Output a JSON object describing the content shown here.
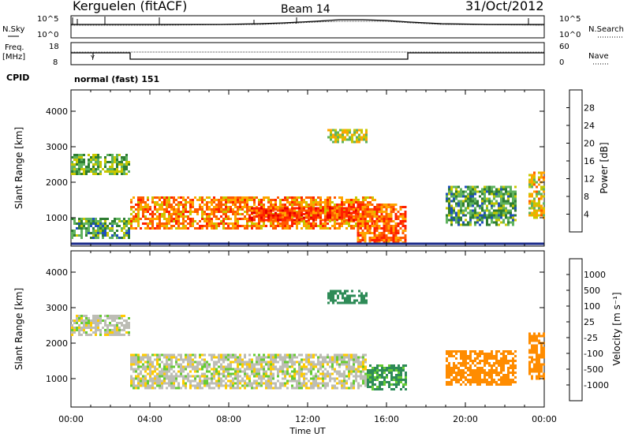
{
  "header": {
    "station": "Kerguelen (fitACF)",
    "beam": "Beam 14",
    "date": "31/Oct/2012"
  },
  "top_panels": {
    "nsky_label": "N.Sky",
    "nsearch_label": "N.Search",
    "count_ticks": [
      "10^5",
      "10^0"
    ],
    "freq_label_1": "Freq.",
    "freq_label_2": "[MHz]",
    "freq_ticks": [
      "18",
      "8"
    ],
    "nave_label": "Nave",
    "nave_ticks": [
      "60",
      "0"
    ],
    "cpid_label": "CPID",
    "cpid_value": "normal (fast) 151"
  },
  "colors": {
    "power_scale": [
      "#0000ff",
      "#1f4fbf",
      "#2e7d32",
      "#5fb35f",
      "#c8c800",
      "#ffa500",
      "#ff5a00",
      "#ff2000",
      "#e60000"
    ],
    "velocity_scale": [
      "#0000cc",
      "#1f5fbf",
      "#2e8b57",
      "#66cc33",
      "#c0c0b8",
      "#ffcc00",
      "#ff8c00",
      "#ff3300",
      "#ff0000"
    ],
    "ground_scatter": "#bdbdb5"
  },
  "chart_data": [
    {
      "type": "heatmap",
      "title": "",
      "xlabel": "Time UT",
      "ylabel": "Slant Range [km]",
      "x_ticks": [
        "00:00",
        "04:00",
        "08:00",
        "12:00",
        "16:00",
        "20:00",
        "00:00"
      ],
      "y_ticks": [
        "1000",
        "2000",
        "3000",
        "4000"
      ],
      "ylim": [
        200,
        4600
      ],
      "colorbar": {
        "label": "Power [dB]",
        "ticks": [
          "4",
          "8",
          "12",
          "16",
          "20",
          "24",
          "28"
        ],
        "range": [
          0,
          32
        ]
      },
      "regions": [
        {
          "t_start": 0.0,
          "t_end": 3.0,
          "r_low": 2200,
          "r_high": 2800,
          "level": 12
        },
        {
          "t_start": 0.0,
          "t_end": 3.0,
          "r_low": 400,
          "r_high": 1000,
          "level": 10
        },
        {
          "t_start": 3.0,
          "t_end": 15.5,
          "r_low": 700,
          "r_high": 1600,
          "level": 22
        },
        {
          "t_start": 9.0,
          "t_end": 14.5,
          "r_low": 900,
          "r_high": 1300,
          "level": 27
        },
        {
          "t_start": 13.0,
          "t_end": 15.0,
          "r_low": 3100,
          "r_high": 3500,
          "level": 16
        },
        {
          "t_start": 14.5,
          "t_end": 17.0,
          "r_low": 300,
          "r_high": 1400,
          "level": 24
        },
        {
          "t_start": 19.0,
          "t_end": 22.5,
          "r_low": 800,
          "r_high": 1900,
          "level": 10
        },
        {
          "t_start": 23.2,
          "t_end": 24.0,
          "r_low": 1000,
          "r_high": 2300,
          "level": 18
        }
      ]
    },
    {
      "type": "heatmap",
      "title": "",
      "xlabel": "Time UT",
      "ylabel": "Slant Range [km]",
      "x_ticks": [
        "00:00",
        "04:00",
        "08:00",
        "12:00",
        "16:00",
        "20:00",
        "00:00"
      ],
      "y_ticks": [
        "1000",
        "2000",
        "3000",
        "4000"
      ],
      "ylim": [
        200,
        4600
      ],
      "colorbar": {
        "label": "Velocity [m s⁻¹]",
        "ticks": [
          "1000",
          "500",
          "100",
          "25",
          "-25",
          "-100",
          "-500",
          "-1000"
        ]
      },
      "regions": [
        {
          "t_start": 0.0,
          "t_end": 3.0,
          "r_low": 2200,
          "r_high": 2800,
          "velocity": 0
        },
        {
          "t_start": 3.0,
          "t_end": 15.0,
          "r_low": 700,
          "r_high": 1700,
          "velocity": 0
        },
        {
          "t_start": 13.0,
          "t_end": 15.0,
          "r_low": 3100,
          "r_high": 3500,
          "velocity": 150
        },
        {
          "t_start": 15.0,
          "t_end": 17.0,
          "r_low": 700,
          "r_high": 1400,
          "velocity": 120
        },
        {
          "t_start": 19.0,
          "t_end": 22.5,
          "r_low": 800,
          "r_high": 1800,
          "velocity": -150
        },
        {
          "t_start": 23.2,
          "t_end": 24.0,
          "r_low": 1000,
          "r_high": 2300,
          "velocity": -200
        }
      ]
    }
  ]
}
